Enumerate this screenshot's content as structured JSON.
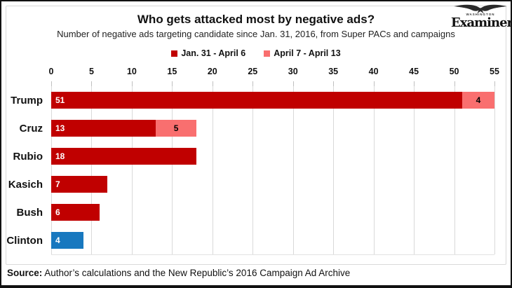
{
  "branding": {
    "name": "Examiner",
    "small_label": "WASHINGTON"
  },
  "chart_data": {
    "type": "bar",
    "orientation": "horizontal",
    "title": "Who gets attacked most by negative ads?",
    "subtitle": "Number of negative ads targeting candidate since Jan. 31, 2016, from Super PACs and campaigns",
    "categories": [
      "Trump",
      "Cruz",
      "Rubio",
      "Kasich",
      "Bush",
      "Clinton"
    ],
    "series": [
      {
        "name": "Jan. 31 - April 6",
        "color": "#c00000",
        "values": [
          51,
          13,
          18,
          7,
          6,
          4
        ]
      },
      {
        "name": "April 7 - April 13",
        "color": "#f96f6f",
        "values": [
          4,
          5,
          0,
          0,
          0,
          0
        ]
      }
    ],
    "category_color_overrides": {
      "Clinton": "#1878bf"
    },
    "xlim": [
      0,
      55
    ],
    "ticks": [
      0,
      5,
      10,
      15,
      20,
      25,
      30,
      35,
      40,
      45,
      50,
      55
    ],
    "grid": true,
    "legend_position": "top",
    "value_label_colors": {
      "series0": "#ffffff",
      "series1": "#000000"
    }
  },
  "source": {
    "label": "Source:",
    "text": " Author’s calculations and the New Republic’s 2016 Campaign Ad Archive"
  }
}
